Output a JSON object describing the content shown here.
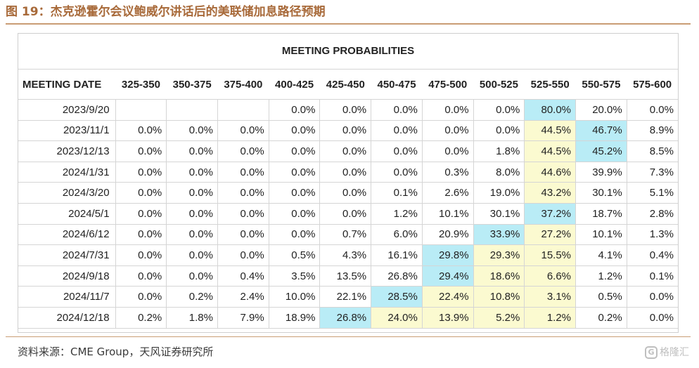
{
  "figure_title": "图 19：杰克逊霍尔会议鲍威尔讲话后的美联储加息路径预期",
  "table_title": "MEETING PROBABILITIES",
  "date_header": "MEETING DATE",
  "columns": [
    "325-350",
    "350-375",
    "375-400",
    "400-425",
    "425-450",
    "450-475",
    "475-500",
    "500-525",
    "525-550",
    "550-575",
    "575-600"
  ],
  "rows": [
    {
      "date": "2023/9/20",
      "cells": [
        "",
        "",
        "",
        "0.0%",
        "0.0%",
        "0.0%",
        "0.0%",
        "0.0%",
        "80.0%",
        "20.0%",
        "0.0%"
      ],
      "hl": {
        "8": "blue"
      }
    },
    {
      "date": "2023/11/1",
      "cells": [
        "0.0%",
        "0.0%",
        "0.0%",
        "0.0%",
        "0.0%",
        "0.0%",
        "0.0%",
        "0.0%",
        "44.5%",
        "46.7%",
        "8.9%"
      ],
      "hl": {
        "8": "yellow",
        "9": "blue"
      }
    },
    {
      "date": "2023/12/13",
      "cells": [
        "0.0%",
        "0.0%",
        "0.0%",
        "0.0%",
        "0.0%",
        "0.0%",
        "0.0%",
        "1.8%",
        "44.5%",
        "45.2%",
        "8.5%"
      ],
      "hl": {
        "8": "yellow",
        "9": "blue"
      }
    },
    {
      "date": "2024/1/31",
      "cells": [
        "0.0%",
        "0.0%",
        "0.0%",
        "0.0%",
        "0.0%",
        "0.0%",
        "0.3%",
        "8.0%",
        "44.6%",
        "39.9%",
        "7.3%"
      ],
      "hl": {
        "8": "yellow"
      }
    },
    {
      "date": "2024/3/20",
      "cells": [
        "0.0%",
        "0.0%",
        "0.0%",
        "0.0%",
        "0.0%",
        "0.1%",
        "2.6%",
        "19.0%",
        "43.2%",
        "30.1%",
        "5.1%"
      ],
      "hl": {
        "8": "yellow"
      }
    },
    {
      "date": "2024/5/1",
      "cells": [
        "0.0%",
        "0.0%",
        "0.0%",
        "0.0%",
        "0.0%",
        "1.2%",
        "10.1%",
        "30.1%",
        "37.2%",
        "18.7%",
        "2.8%"
      ],
      "hl": {
        "8": "blue"
      }
    },
    {
      "date": "2024/6/12",
      "cells": [
        "0.0%",
        "0.0%",
        "0.0%",
        "0.0%",
        "0.7%",
        "6.0%",
        "20.9%",
        "33.9%",
        "27.2%",
        "10.1%",
        "1.3%"
      ],
      "hl": {
        "7": "blue",
        "8": "yellow"
      }
    },
    {
      "date": "2024/7/31",
      "cells": [
        "0.0%",
        "0.0%",
        "0.0%",
        "0.5%",
        "4.3%",
        "16.1%",
        "29.8%",
        "29.3%",
        "15.5%",
        "4.1%",
        "0.4%"
      ],
      "hl": {
        "6": "blue",
        "7": "yellow",
        "8": "yellow"
      }
    },
    {
      "date": "2024/9/18",
      "cells": [
        "0.0%",
        "0.0%",
        "0.4%",
        "3.5%",
        "13.5%",
        "26.8%",
        "29.4%",
        "18.6%",
        "6.6%",
        "1.2%",
        "0.1%"
      ],
      "hl": {
        "6": "blue",
        "7": "yellow",
        "8": "yellow"
      }
    },
    {
      "date": "2024/11/7",
      "cells": [
        "0.0%",
        "0.2%",
        "2.4%",
        "10.0%",
        "22.1%",
        "28.5%",
        "22.4%",
        "10.8%",
        "3.1%",
        "0.5%",
        "0.0%"
      ],
      "hl": {
        "5": "blue",
        "6": "yellow",
        "7": "yellow",
        "8": "yellow"
      }
    },
    {
      "date": "2024/12/18",
      "cells": [
        "0.2%",
        "1.8%",
        "7.9%",
        "18.9%",
        "26.8%",
        "24.0%",
        "13.9%",
        "5.2%",
        "1.2%",
        "0.2%",
        "0.0%"
      ],
      "hl": {
        "4": "blue",
        "5": "yellow",
        "6": "yellow",
        "7": "yellow",
        "8": "yellow"
      }
    }
  ],
  "source": "资料来源：CME Group，天风证券研究所",
  "watermark": "格隆汇",
  "colors": {
    "highlight_blue": "#b9ecf6",
    "highlight_yellow": "#fbfad0",
    "title_brown": "#a86a3a"
  }
}
